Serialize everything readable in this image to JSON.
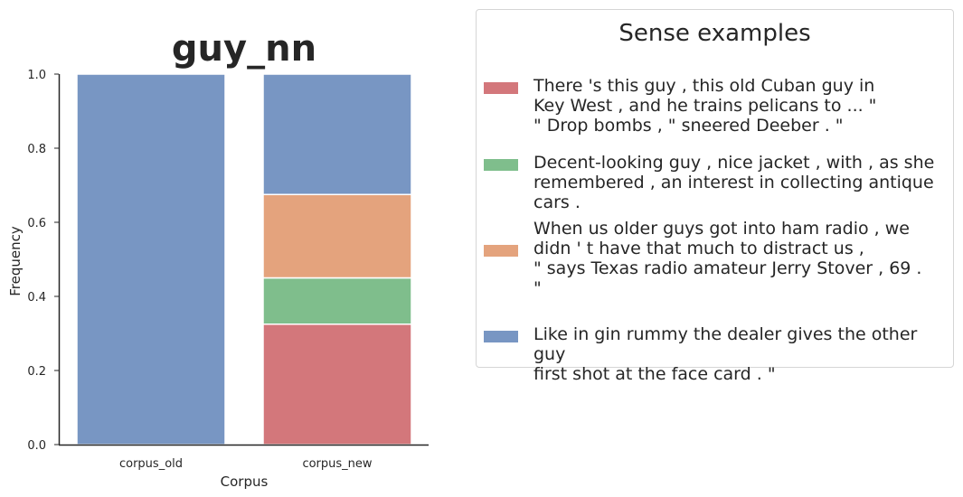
{
  "chart_data": {
    "type": "bar",
    "stacked": true,
    "title": "guy_nn",
    "xlabel": "Corpus",
    "ylabel": "Frequency",
    "ylim": [
      0,
      1
    ],
    "yticks": [
      "0.0",
      "0.2",
      "0.4",
      "0.6",
      "0.8",
      "1.0"
    ],
    "categories": [
      "corpus_old",
      "corpus_new"
    ],
    "series": [
      {
        "color": "#d3777b",
        "values": [
          0.0,
          0.325
        ]
      },
      {
        "color": "#7fbe8c",
        "values": [
          0.0,
          0.125
        ]
      },
      {
        "color": "#e4a37d",
        "values": [
          0.0,
          0.225
        ]
      },
      {
        "color": "#7896c3",
        "values": [
          1.0,
          0.325
        ]
      }
    ],
    "grid": false,
    "legend_position": "right"
  },
  "legend": {
    "title": "Sense examples",
    "entries": [
      {
        "color": "#d3777b",
        "text": "There 's this guy , this old Cuban guy in\nKey West , and he trains pelicans to ... \"\n\" Drop bombs , \" sneered Deeber . \""
      },
      {
        "color": "#7fbe8c",
        "text": "Decent-looking guy , nice jacket , with , as she\nremembered , an interest in collecting antique cars ."
      },
      {
        "color": "#e4a37d",
        "text": "When us older guys got into ham radio , we\ndidn ' t have that much to distract us ,\n\" says Texas radio amateur Jerry Stover , 69 .\n\""
      },
      {
        "color": "#7896c3",
        "text": "Like in gin rummy the dealer gives the other guy\nfirst shot at the face card . \""
      }
    ]
  }
}
